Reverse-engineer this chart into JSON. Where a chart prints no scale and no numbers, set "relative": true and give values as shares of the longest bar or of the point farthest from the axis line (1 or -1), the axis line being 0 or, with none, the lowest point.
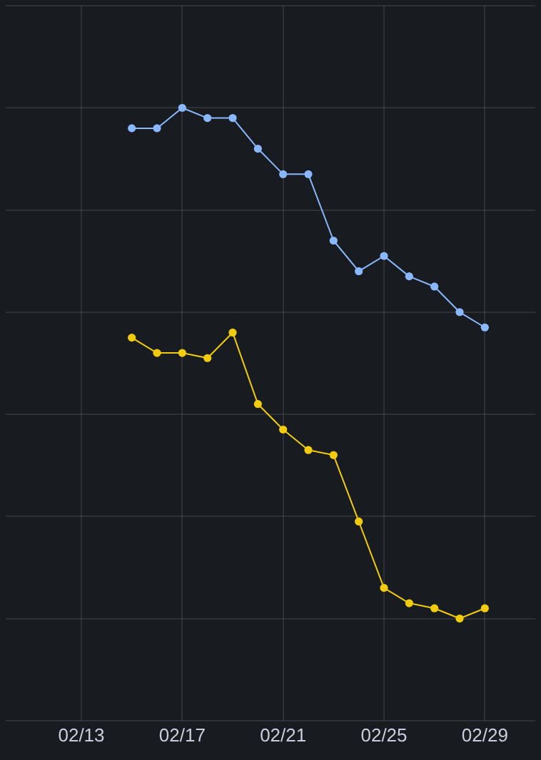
{
  "chart_data": {
    "type": "line",
    "relative": true,
    "x": [
      "--02-15",
      "--02-16",
      "--02-17",
      "--02-18",
      "--02-19",
      "--02-20",
      "--02-21",
      "--02-22",
      "--02-23",
      "--02-24",
      "--02-25",
      "--02-26",
      "--02-27",
      "--02-28",
      "--02-29"
    ],
    "series": [
      {
        "color": "#8ab8ff",
        "values": [
          0.96,
          0.96,
          1,
          0.98,
          0.98,
          0.92,
          0.87,
          0.87,
          0.74,
          0.68,
          0.71,
          0.67,
          0.65,
          0.6,
          0.57
        ]
      },
      {
        "color": "#f2cc0c",
        "values": [
          0.55,
          0.52,
          0.52,
          0.51,
          0.56,
          0.42,
          0.37,
          0.33,
          0.32,
          0.19,
          0.06,
          0.03,
          0.02,
          0,
          0.02
        ]
      }
    ],
    "xlim": [
      "--02-10",
      "--03-02"
    ],
    "xticks": [
      {
        "value": "--02-13",
        "label": "02/13"
      },
      {
        "value": "--02-17",
        "label": "02/17"
      },
      {
        "value": "--02-21",
        "label": "02/21"
      },
      {
        "value": "--02-25",
        "label": "02/25"
      },
      {
        "value": "--02-29",
        "label": "02/29"
      }
    ],
    "grid": true,
    "legend": false,
    "marker": "circle",
    "line_style": "solid"
  }
}
